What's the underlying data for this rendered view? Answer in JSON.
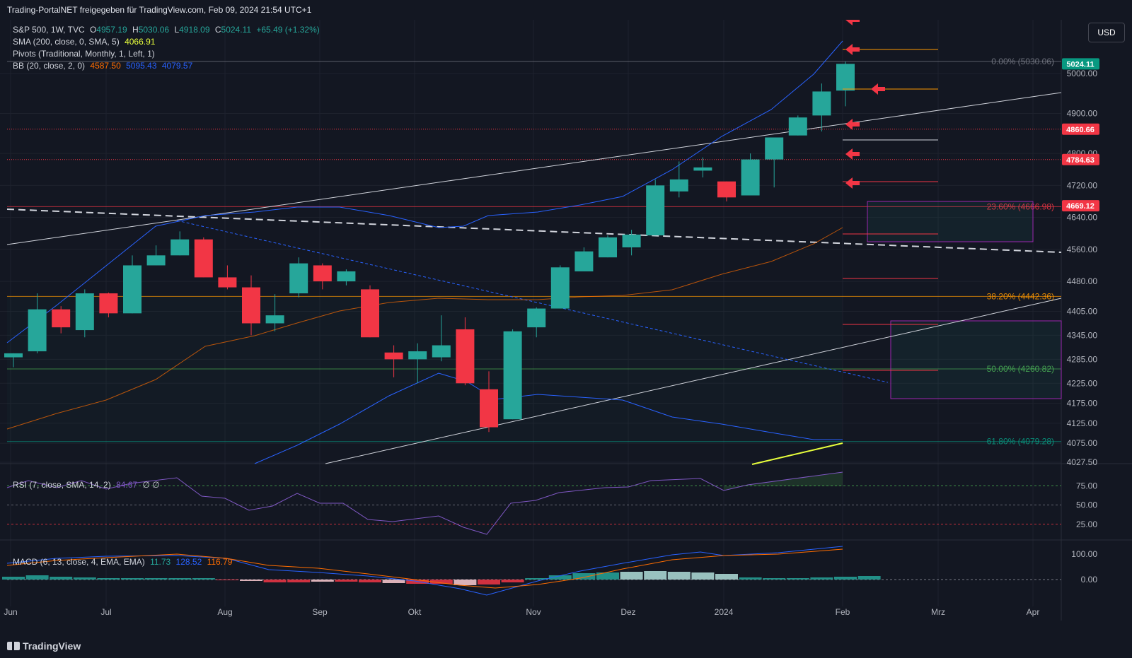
{
  "header": {
    "publisher": "Trading-PortalNET freigegeben für TradingView.com, Feb 09, 2024 21:54 UTC+1"
  },
  "currency_button": "USD",
  "brand": "TradingView",
  "legend": {
    "symbol": "S&P 500, 1W, TVC",
    "o_label": "O",
    "o": "4957.19",
    "h_label": "H",
    "h": "5030.06",
    "l_label": "L",
    "l": "4918.09",
    "c_label": "C",
    "c": "5024.11",
    "change": "+65.49 (+1.32%)",
    "sma": "SMA (200, close, 0, SMA, 5)",
    "sma_value": "4066.91",
    "pivots": "Pivots (Traditional, Monthly, 1, Left, 1)",
    "bb": "BB (20, close, 2, 0)",
    "bb_basis": "4587.50",
    "bb_upper": "5095.43",
    "bb_lower": "4079.57",
    "rsi": "RSI (7, close, SMA, 14, 2)",
    "rsi_value": "84.67",
    "rsi_extra": "∅ ∅",
    "macd": "MACD (6, 13, close, 4, EMA, EMA)",
    "macd_v1": "11.73",
    "macd_v2": "128.52",
    "macd_v3": "116.79"
  },
  "colors": {
    "up": "#26a69a",
    "down": "#f23645",
    "bg": "#131722",
    "grid": "#1e222d",
    "fib": "#787b86",
    "bb": "#2962ff",
    "bb_basis": "#ff6d00",
    "sma": "#e8ff3c",
    "rsi": "#7e57c2",
    "macd_line": "#2962ff",
    "signal_line": "#ff6d00",
    "arrow": "#f23645",
    "box": "#9c27b0"
  },
  "chart_data": {
    "type": "candlestick",
    "x_labels": [
      "Jun",
      "Jul",
      "Aug",
      "Sep",
      "Okt",
      "Nov",
      "Dez",
      "2024",
      "Feb",
      "Mrz",
      "Apr"
    ],
    "y_ticks": [
      "5000.00",
      "4900.00",
      "4800.00",
      "4720.00",
      "4640.00",
      "4560.00",
      "4480.00",
      "4405.00",
      "4345.00",
      "4285.00",
      "4225.00",
      "4175.00",
      "4125.00",
      "4075.00",
      "4027.50"
    ],
    "price_tags": [
      {
        "label": "5024.11",
        "value": 5024.11,
        "color": "#089981"
      },
      {
        "label": "4860.66",
        "value": 4860.66,
        "color": "#f23645"
      },
      {
        "label": "4784.63",
        "value": 4784.63,
        "color": "#f23645"
      },
      {
        "label": "4669.12",
        "value": 4669.12,
        "color": "#f23645"
      }
    ],
    "fibonacci": [
      {
        "label": "0.00% (5030.06)",
        "value": 5030.06,
        "color": "#787b86"
      },
      {
        "label": "23.60% (4666.98)",
        "value": 4666.98,
        "color": "#f23645"
      },
      {
        "label": "38.20% (4442.36)",
        "value": 4442.36,
        "color": "#ff9800"
      },
      {
        "label": "50.00% (4260.82)",
        "value": 4260.82,
        "color": "#4caf50"
      },
      {
        "label": "61.80% (4079.28)",
        "value": 4079.28,
        "color": "#089981"
      }
    ],
    "candles": [
      {
        "o": 4290,
        "h": 4300,
        "l": 4265,
        "c": 4300
      },
      {
        "o": 4305,
        "h": 4450,
        "l": 4300,
        "c": 4410
      },
      {
        "o": 4410,
        "h": 4418,
        "l": 4350,
        "c": 4365
      },
      {
        "o": 4358,
        "h": 4460,
        "l": 4340,
        "c": 4450
      },
      {
        "o": 4450,
        "h": 4452,
        "l": 4390,
        "c": 4400
      },
      {
        "o": 4400,
        "h": 4545,
        "l": 4400,
        "c": 4520
      },
      {
        "o": 4520,
        "h": 4570,
        "l": 4520,
        "c": 4545
      },
      {
        "o": 4545,
        "h": 4605,
        "l": 4545,
        "c": 4585
      },
      {
        "o": 4585,
        "h": 4590,
        "l": 4490,
        "c": 4490
      },
      {
        "o": 4490,
        "h": 4520,
        "l": 4460,
        "c": 4465
      },
      {
        "o": 4465,
        "h": 4495,
        "l": 4345,
        "c": 4375
      },
      {
        "o": 4375,
        "h": 4448,
        "l": 4355,
        "c": 4395
      },
      {
        "o": 4450,
        "h": 4540,
        "l": 4440,
        "c": 4525
      },
      {
        "o": 4520,
        "h": 4525,
        "l": 4460,
        "c": 4480
      },
      {
        "o": 4480,
        "h": 4510,
        "l": 4470,
        "c": 4505
      },
      {
        "o": 4460,
        "h": 4470,
        "l": 4340,
        "c": 4340
      },
      {
        "o": 4302,
        "h": 4320,
        "l": 4240,
        "c": 4285
      },
      {
        "o": 4285,
        "h": 4325,
        "l": 4225,
        "c": 4305
      },
      {
        "o": 4290,
        "h": 4395,
        "l": 4280,
        "c": 4320
      },
      {
        "o": 4360,
        "h": 4390,
        "l": 4220,
        "c": 4225
      },
      {
        "o": 4210,
        "h": 4255,
        "l": 4103,
        "c": 4115
      },
      {
        "o": 4135,
        "h": 4360,
        "l": 4135,
        "c": 4355
      },
      {
        "o": 4365,
        "h": 4415,
        "l": 4340,
        "c": 4412
      },
      {
        "o": 4412,
        "h": 4520,
        "l": 4412,
        "c": 4515
      },
      {
        "o": 4505,
        "h": 4565,
        "l": 4505,
        "c": 4555
      },
      {
        "o": 4540,
        "h": 4595,
        "l": 4540,
        "c": 4590
      },
      {
        "o": 4565,
        "h": 4609,
        "l": 4545,
        "c": 4597
      },
      {
        "o": 4595,
        "h": 4735,
        "l": 4595,
        "c": 4720
      },
      {
        "o": 4705,
        "h": 4780,
        "l": 4690,
        "c": 4735
      },
      {
        "o": 4757,
        "h": 4790,
        "l": 4740,
        "c": 4765
      },
      {
        "o": 4730,
        "h": 4730,
        "l": 4680,
        "c": 4690
      },
      {
        "o": 4695,
        "h": 4800,
        "l": 4695,
        "c": 4785
      },
      {
        "o": 4785,
        "h": 4840,
        "l": 4715,
        "c": 4840
      },
      {
        "o": 4845,
        "h": 4895,
        "l": 4845,
        "c": 4890
      },
      {
        "o": 4895,
        "h": 4975,
        "l": 4855,
        "c": 4955
      },
      {
        "o": 4957.19,
        "h": 5030.06,
        "l": 4918.09,
        "c": 5024.11
      }
    ],
    "rsi": {
      "levels": [
        75,
        50,
        25
      ]
    },
    "macd": {
      "levels": [
        100,
        0
      ]
    }
  }
}
